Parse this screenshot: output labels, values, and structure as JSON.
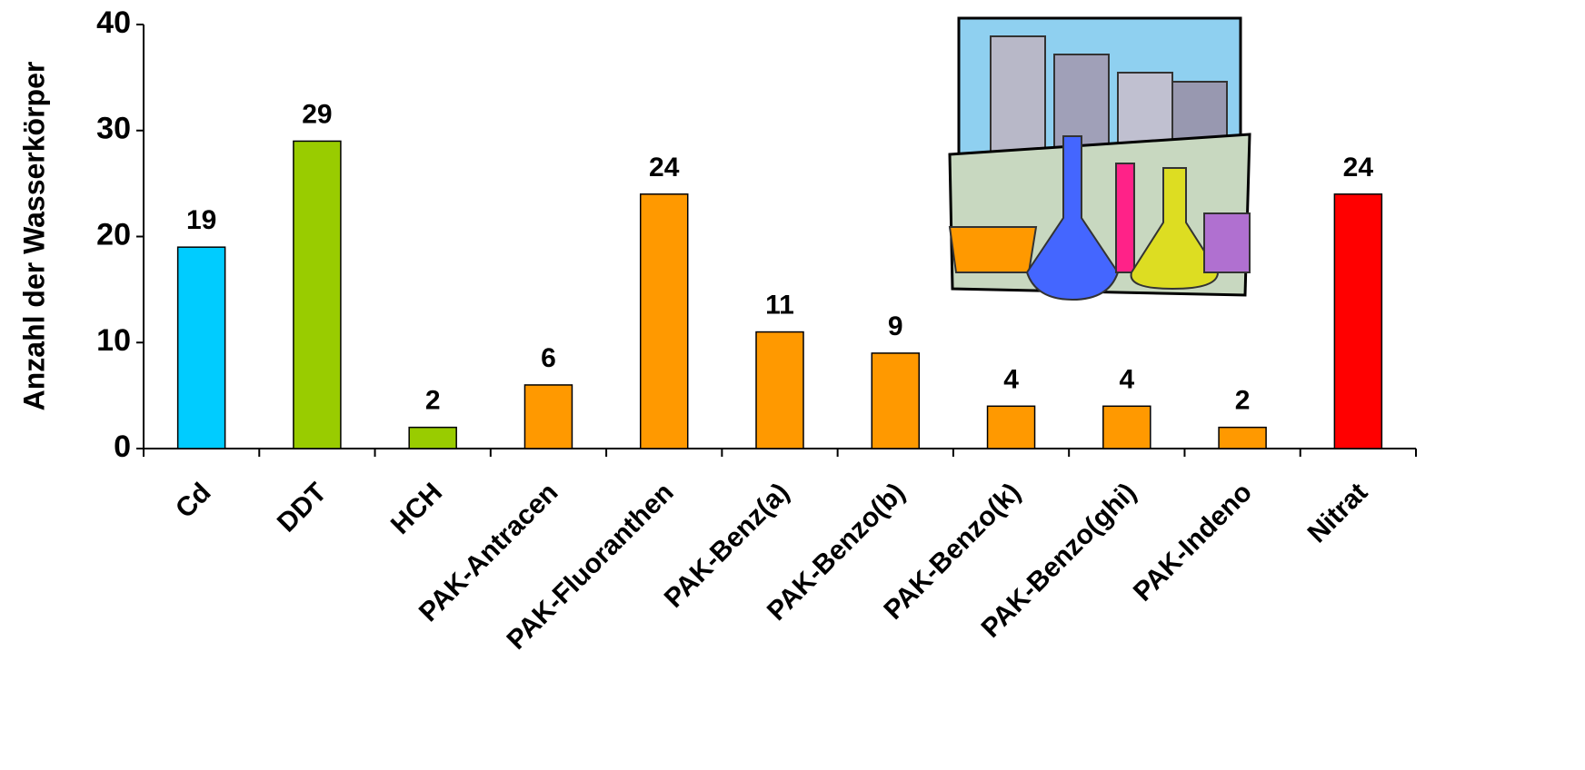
{
  "chart_data": {
    "type": "bar",
    "y_label": "Anzahl der Wasserkörper",
    "categories": [
      "Cd",
      "DDT",
      "HCH",
      "PAK-Antracen",
      "PAK-Fluoranthen",
      "PAK-Benz(a)",
      "PAK-Benzo(b)",
      "PAK-Benzo(k)",
      "PAK-Benzo(ghi)",
      "PAK-Indeno",
      "Nitrat"
    ],
    "values": [
      19,
      29,
      2,
      6,
      24,
      11,
      9,
      4,
      4,
      2,
      24
    ],
    "colors": [
      "#00ccff",
      "#99cc00",
      "#99cc00",
      "#ff9900",
      "#ff9900",
      "#ff9900",
      "#ff9900",
      "#ff9900",
      "#ff9900",
      "#ff9900",
      "#ff0000"
    ],
    "ylim": [
      0,
      40
    ],
    "yticks": [
      0,
      10,
      20,
      30,
      40
    ],
    "grid": false
  }
}
